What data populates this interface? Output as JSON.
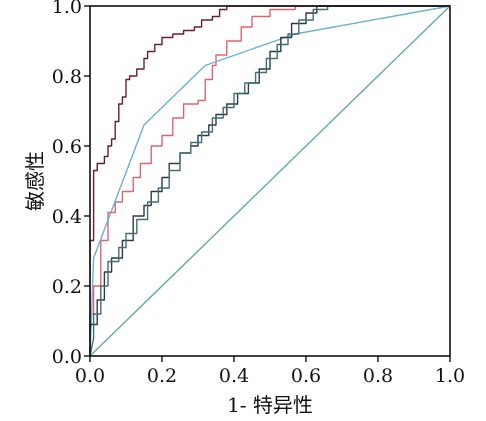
{
  "chart_data": {
    "type": "line",
    "title": "",
    "xlabel": "1- 特异性",
    "ylabel": "敏感性",
    "xlim": [
      0,
      1
    ],
    "ylim": [
      0,
      1
    ],
    "x_ticks": [
      "0.0",
      "0.2",
      "0.4",
      "0.6",
      "0.8",
      "1.0"
    ],
    "y_ticks": [
      "0.0",
      "0.2",
      "0.4",
      "0.6",
      "0.8",
      "1.0"
    ],
    "grid": false,
    "legend": "none",
    "series": [
      {
        "color": "#6a1f2b",
        "points": [
          [
            0,
            0
          ],
          [
            0,
            0.33
          ],
          [
            0.01,
            0.33
          ],
          [
            0.01,
            0.53
          ],
          [
            0.02,
            0.53
          ],
          [
            0.02,
            0.55
          ],
          [
            0.04,
            0.55
          ],
          [
            0.04,
            0.57
          ],
          [
            0.05,
            0.57
          ],
          [
            0.05,
            0.6
          ],
          [
            0.06,
            0.6
          ],
          [
            0.06,
            0.62
          ],
          [
            0.07,
            0.62
          ],
          [
            0.07,
            0.67
          ],
          [
            0.08,
            0.67
          ],
          [
            0.08,
            0.72
          ],
          [
            0.09,
            0.72
          ],
          [
            0.09,
            0.74
          ],
          [
            0.1,
            0.74
          ],
          [
            0.1,
            0.79
          ],
          [
            0.11,
            0.79
          ],
          [
            0.11,
            0.8
          ],
          [
            0.13,
            0.8
          ],
          [
            0.13,
            0.82
          ],
          [
            0.15,
            0.82
          ],
          [
            0.15,
            0.85
          ],
          [
            0.16,
            0.85
          ],
          [
            0.16,
            0.87
          ],
          [
            0.18,
            0.87
          ],
          [
            0.18,
            0.89
          ],
          [
            0.2,
            0.89
          ],
          [
            0.2,
            0.91
          ],
          [
            0.23,
            0.91
          ],
          [
            0.23,
            0.92
          ],
          [
            0.26,
            0.92
          ],
          [
            0.26,
            0.93
          ],
          [
            0.29,
            0.93
          ],
          [
            0.29,
            0.94
          ],
          [
            0.31,
            0.94
          ],
          [
            0.31,
            0.96
          ],
          [
            0.34,
            0.96
          ],
          [
            0.34,
            0.97
          ],
          [
            0.36,
            0.97
          ],
          [
            0.36,
            0.99
          ],
          [
            0.38,
            0.99
          ],
          [
            0.38,
            1
          ],
          [
            1,
            1
          ]
        ]
      },
      {
        "color": "#e0646e",
        "points": [
          [
            0,
            0
          ],
          [
            0,
            0.12
          ],
          [
            0.01,
            0.12
          ],
          [
            0.01,
            0.2
          ],
          [
            0.03,
            0.2
          ],
          [
            0.03,
            0.33
          ],
          [
            0.05,
            0.33
          ],
          [
            0.05,
            0.41
          ],
          [
            0.07,
            0.41
          ],
          [
            0.07,
            0.44
          ],
          [
            0.09,
            0.44
          ],
          [
            0.09,
            0.47
          ],
          [
            0.12,
            0.47
          ],
          [
            0.12,
            0.51
          ],
          [
            0.14,
            0.51
          ],
          [
            0.14,
            0.55
          ],
          [
            0.17,
            0.55
          ],
          [
            0.17,
            0.6
          ],
          [
            0.2,
            0.6
          ],
          [
            0.2,
            0.63
          ],
          [
            0.23,
            0.63
          ],
          [
            0.23,
            0.68
          ],
          [
            0.26,
            0.68
          ],
          [
            0.26,
            0.72
          ],
          [
            0.3,
            0.72
          ],
          [
            0.3,
            0.73
          ],
          [
            0.32,
            0.73
          ],
          [
            0.32,
            0.79
          ],
          [
            0.34,
            0.79
          ],
          [
            0.34,
            0.83
          ],
          [
            0.35,
            0.83
          ],
          [
            0.35,
            0.86
          ],
          [
            0.38,
            0.86
          ],
          [
            0.38,
            0.9
          ],
          [
            0.42,
            0.9
          ],
          [
            0.42,
            0.94
          ],
          [
            0.45,
            0.94
          ],
          [
            0.45,
            0.97
          ],
          [
            0.5,
            0.97
          ],
          [
            0.5,
            0.99
          ],
          [
            0.57,
            0.99
          ],
          [
            0.57,
            1
          ],
          [
            1,
            1
          ]
        ]
      },
      {
        "color": "#6cb2d6",
        "points": [
          [
            0,
            0
          ],
          [
            0.01,
            0.28
          ],
          [
            0.15,
            0.66
          ],
          [
            0.32,
            0.83
          ],
          [
            0.57,
            0.92
          ],
          [
            1,
            1
          ]
        ]
      },
      {
        "color": "#2d3a48",
        "points": [
          [
            0,
            0
          ],
          [
            0,
            0.09
          ],
          [
            0.02,
            0.09
          ],
          [
            0.02,
            0.16
          ],
          [
            0.04,
            0.16
          ],
          [
            0.04,
            0.24
          ],
          [
            0.06,
            0.24
          ],
          [
            0.06,
            0.28
          ],
          [
            0.09,
            0.28
          ],
          [
            0.09,
            0.33
          ],
          [
            0.12,
            0.33
          ],
          [
            0.12,
            0.4
          ],
          [
            0.15,
            0.4
          ],
          [
            0.15,
            0.43
          ],
          [
            0.17,
            0.43
          ],
          [
            0.17,
            0.47
          ],
          [
            0.2,
            0.47
          ],
          [
            0.2,
            0.51
          ],
          [
            0.22,
            0.51
          ],
          [
            0.22,
            0.55
          ],
          [
            0.25,
            0.55
          ],
          [
            0.25,
            0.58
          ],
          [
            0.28,
            0.58
          ],
          [
            0.28,
            0.6
          ],
          [
            0.3,
            0.6
          ],
          [
            0.3,
            0.63
          ],
          [
            0.33,
            0.63
          ],
          [
            0.33,
            0.66
          ],
          [
            0.35,
            0.66
          ],
          [
            0.35,
            0.69
          ],
          [
            0.38,
            0.69
          ],
          [
            0.38,
            0.72
          ],
          [
            0.41,
            0.72
          ],
          [
            0.41,
            0.75
          ],
          [
            0.44,
            0.75
          ],
          [
            0.44,
            0.78
          ],
          [
            0.47,
            0.78
          ],
          [
            0.47,
            0.82
          ],
          [
            0.5,
            0.82
          ],
          [
            0.5,
            0.87
          ],
          [
            0.53,
            0.87
          ],
          [
            0.53,
            0.91
          ],
          [
            0.56,
            0.91
          ],
          [
            0.56,
            0.95
          ],
          [
            0.6,
            0.95
          ],
          [
            0.6,
            0.98
          ],
          [
            0.63,
            0.98
          ],
          [
            0.63,
            1
          ],
          [
            1,
            1
          ]
        ]
      },
      {
        "color": "#3f6f73",
        "points": [
          [
            0,
            0
          ],
          [
            0.01,
            0.05
          ],
          [
            0.01,
            0.12
          ],
          [
            0.03,
            0.12
          ],
          [
            0.03,
            0.2
          ],
          [
            0.05,
            0.2
          ],
          [
            0.05,
            0.27
          ],
          [
            0.08,
            0.27
          ],
          [
            0.08,
            0.31
          ],
          [
            0.1,
            0.31
          ],
          [
            0.1,
            0.35
          ],
          [
            0.13,
            0.35
          ],
          [
            0.13,
            0.39
          ],
          [
            0.16,
            0.39
          ],
          [
            0.16,
            0.44
          ],
          [
            0.19,
            0.44
          ],
          [
            0.19,
            0.48
          ],
          [
            0.22,
            0.48
          ],
          [
            0.22,
            0.53
          ],
          [
            0.25,
            0.53
          ],
          [
            0.25,
            0.58
          ],
          [
            0.28,
            0.58
          ],
          [
            0.28,
            0.61
          ],
          [
            0.31,
            0.61
          ],
          [
            0.31,
            0.64
          ],
          [
            0.34,
            0.64
          ],
          [
            0.34,
            0.68
          ],
          [
            0.37,
            0.68
          ],
          [
            0.37,
            0.71
          ],
          [
            0.4,
            0.71
          ],
          [
            0.4,
            0.75
          ],
          [
            0.43,
            0.75
          ],
          [
            0.43,
            0.78
          ],
          [
            0.46,
            0.78
          ],
          [
            0.46,
            0.81
          ],
          [
            0.49,
            0.81
          ],
          [
            0.49,
            0.85
          ],
          [
            0.52,
            0.85
          ],
          [
            0.52,
            0.89
          ],
          [
            0.55,
            0.89
          ],
          [
            0.55,
            0.92
          ],
          [
            0.58,
            0.92
          ],
          [
            0.58,
            0.96
          ],
          [
            0.62,
            0.96
          ],
          [
            0.62,
            0.99
          ],
          [
            0.66,
            0.99
          ],
          [
            0.66,
            1
          ],
          [
            1,
            1
          ]
        ]
      },
      {
        "color": "#5faaa6",
        "points": [
          [
            0,
            0
          ],
          [
            1,
            1
          ]
        ]
      }
    ]
  }
}
